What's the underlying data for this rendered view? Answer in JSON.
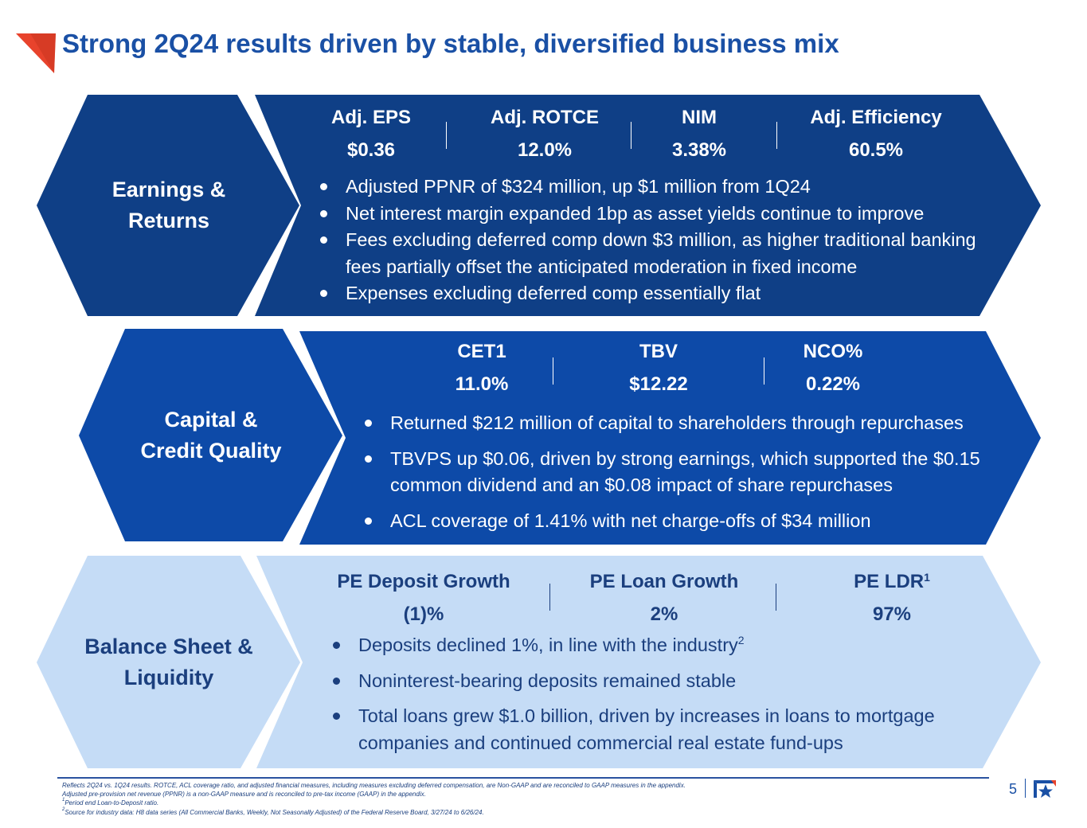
{
  "title": "Strong 2Q24 results driven by stable, diversified business mix",
  "colors": {
    "navy": "#0f3f86",
    "blue": "#0d4aa8",
    "light": "#c5dcf6",
    "accent": "#e8432c",
    "title": "#1a50a5"
  },
  "earnings": {
    "label_line1": "Earnings &",
    "label_line2": "Returns",
    "metrics": [
      {
        "label": "Adj. EPS",
        "value": "$0.36"
      },
      {
        "label": "Adj. ROTCE",
        "value": "12.0%"
      },
      {
        "label": "NIM",
        "value": "3.38%"
      },
      {
        "label": "Adj. Efficiency",
        "value": "60.5%"
      }
    ],
    "bullets": [
      "Adjusted PPNR of $324 million, up $1 million from 1Q24",
      "Net interest margin expanded 1bp as asset yields continue to improve",
      "Fees excluding deferred comp down $3 million, as higher traditional banking fees partially offset the anticipated moderation in fixed income",
      "Expenses excluding deferred comp essentially flat"
    ]
  },
  "capital": {
    "label_line1": "Capital &",
    "label_line2": "Credit Quality",
    "metrics": [
      {
        "label": "CET1",
        "value": "11.0%"
      },
      {
        "label": "TBV",
        "value": "$12.22"
      },
      {
        "label": "NCO%",
        "value": "0.22%"
      }
    ],
    "bullets": [
      "Returned $212 million of capital to shareholders through repurchases",
      "TBVPS up $0.06, driven by strong earnings, which supported the $0.15 common dividend and an $0.08 impact of share repurchases",
      "ACL coverage of 1.41% with net charge-offs of $34 million"
    ]
  },
  "balance": {
    "label_line1": "Balance Sheet &",
    "label_line2": "Liquidity",
    "metrics": [
      {
        "label": "PE Deposit Growth",
        "value": "(1)%"
      },
      {
        "label": "PE Loan Growth",
        "value": "2%"
      },
      {
        "label": "PE LDR",
        "sup": "1",
        "value": "97%"
      }
    ],
    "bullets": [
      {
        "text": "Deposits declined 1%, in line with the industry",
        "sup": "2"
      },
      {
        "text": "Noninterest-bearing deposits remained stable"
      },
      {
        "text": "Total loans grew $1.0 billion, driven by increases in loans to mortgage companies and continued commercial real estate fund-ups"
      }
    ]
  },
  "footnotes": {
    "line1": "Reflects 2Q24 vs. 1Q24 results. ROTCE, ACL coverage ratio, and adjusted financial measures, including measures excluding deferred compensation, are Non-GAAP and are reconciled to GAAP measures in the appendix.",
    "line2": "Adjusted pre-provision net revenue (PPNR) is a non-GAAP measure and is reconciled to pre-tax income (GAAP) in the appendix.",
    "line3_sup": "1",
    "line3": "Period end Loan-to-Deposit ratio.",
    "line4_sup": "2",
    "line4": "Source for industry data: H8 data series (All Commercial Banks, Weekly, Not Seasonally Adjusted) of the Federal Reserve Board, 3/27/24 to 6/26/24."
  },
  "page_number": "5",
  "icons": {
    "corner": "corner-triangle-icon",
    "logo": "bank-star-logo-icon"
  }
}
